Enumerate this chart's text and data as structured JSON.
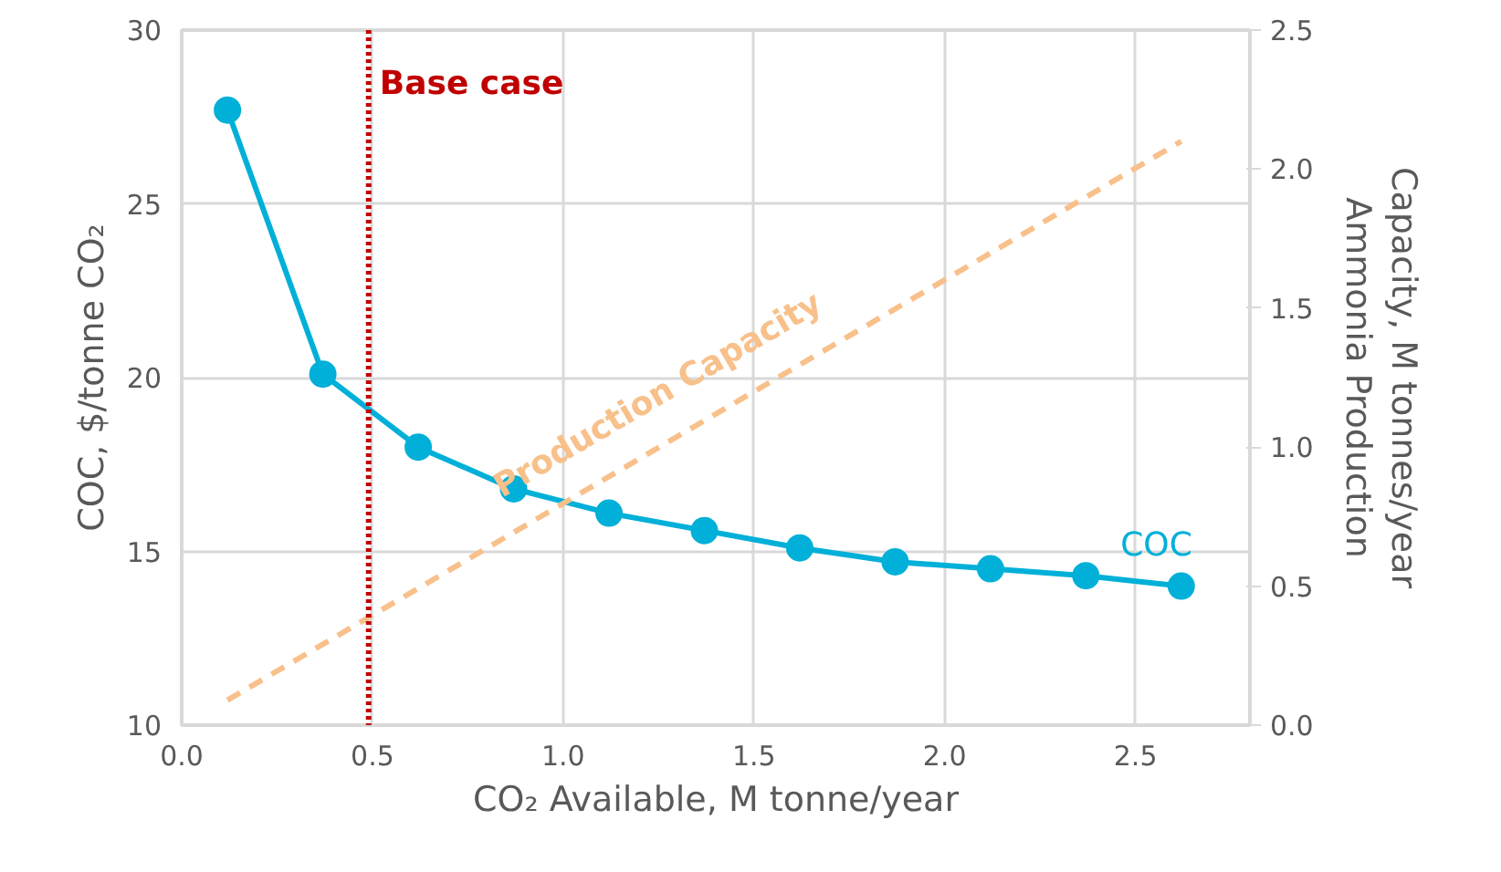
{
  "chart_data": {
    "type": "line",
    "xlabel": "CO₂ Available, M tonne/year",
    "ylabel": "COC, $/tonne CO₂",
    "y2label": "Ammonia Production\nCapacity, M tonnes/year",
    "xlim": [
      0,
      2.8
    ],
    "ylim": [
      10,
      30
    ],
    "y2lim": [
      0,
      2.5
    ],
    "xticks": [
      {
        "value": 0,
        "label": "0.0"
      },
      0.5,
      {
        "value": 1,
        "label": "1.0"
      },
      1.5,
      {
        "value": 2,
        "label": "2.0"
      },
      2.5
    ],
    "yticks": [
      10,
      15,
      20,
      25,
      30
    ],
    "y2ticks": [
      {
        "value": 0,
        "label": "0.0"
      },
      0.5,
      {
        "value": 1,
        "label": "1.0"
      },
      1.5,
      {
        "value": 2,
        "label": "2.0"
      },
      2.5
    ],
    "grid": true,
    "series": [
      {
        "name": "COC",
        "color": "#00b0d8",
        "marker": "circle",
        "line_style": "solid",
        "x": [
          0.12,
          0.37,
          0.62,
          0.87,
          1.12,
          1.37,
          1.62,
          1.87,
          2.12,
          2.37,
          2.62
        ],
        "values": [
          27.7,
          20.1,
          18.0,
          16.8,
          16.1,
          15.6,
          15.1,
          14.7,
          14.5,
          14.3,
          14.0
        ]
      },
      {
        "name": "Production Capacity",
        "color": "#f8c08a",
        "marker": "none",
        "line_style": "dashed",
        "axis": "y2",
        "x": [
          0.12,
          2.62
        ],
        "values": [
          0.09,
          2.1
        ]
      }
    ],
    "ref_lines": [
      {
        "axis": "x",
        "value": 0.49,
        "label": "Base case",
        "color": "#c00000",
        "line_style": "dotted"
      }
    ]
  }
}
